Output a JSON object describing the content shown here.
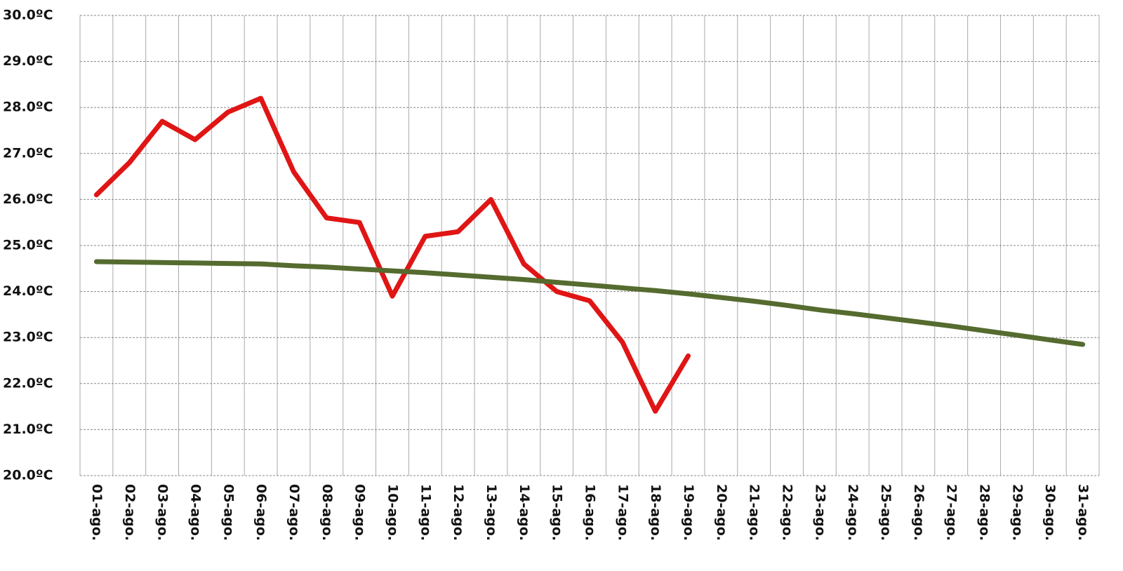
{
  "chart_data": {
    "type": "line",
    "categories": [
      "01-ago.",
      "02-ago.",
      "03-ago.",
      "04-ago.",
      "05-ago.",
      "06-ago.",
      "07-ago.",
      "08-ago.",
      "09-ago.",
      "10-ago.",
      "11-ago.",
      "12-ago.",
      "13-ago.",
      "14-ago.",
      "15-ago.",
      "16-ago.",
      "17-ago.",
      "18-ago.",
      "19-ago.",
      "20-ago.",
      "21-ago.",
      "22-ago.",
      "23-ago.",
      "24-ago.",
      "25-ago.",
      "26-ago.",
      "27-ago.",
      "28-ago.",
      "29-ago.",
      "30-ago.",
      "31-ago."
    ],
    "series": [
      {
        "color": "#e01515",
        "values": [
          26.1,
          26.8,
          27.7,
          27.3,
          27.9,
          28.2,
          26.6,
          25.6,
          25.5,
          23.9,
          25.2,
          25.3,
          26.0,
          24.6,
          24.0,
          23.8,
          22.9,
          21.4,
          22.6,
          null,
          null,
          null,
          null,
          null,
          null,
          null,
          null,
          null,
          null,
          null,
          null
        ]
      },
      {
        "color": "#556b2f",
        "values": [
          24.65,
          24.64,
          24.63,
          24.62,
          24.61,
          24.6,
          24.56,
          24.53,
          24.49,
          24.45,
          24.41,
          24.36,
          24.31,
          24.26,
          24.2,
          24.14,
          24.08,
          24.02,
          23.95,
          23.87,
          23.79,
          23.7,
          23.6,
          23.52,
          23.43,
          23.34,
          23.25,
          23.15,
          23.05,
          22.95,
          22.85
        ]
      }
    ],
    "ylim": [
      20,
      30
    ],
    "yticks": [
      {
        "value": 20,
        "label": "20.0ºC"
      },
      {
        "value": 21,
        "label": "21.0ºC"
      },
      {
        "value": 22,
        "label": "22.0ºC"
      },
      {
        "value": 23,
        "label": "23.0ºC"
      },
      {
        "value": 24,
        "label": "24.0ºC"
      },
      {
        "value": 25,
        "label": "25.0ºC"
      },
      {
        "value": 26,
        "label": "26.0ºC"
      },
      {
        "value": 27,
        "label": "27.0ºC"
      },
      {
        "value": 28,
        "label": "28.0ºC"
      },
      {
        "value": 29,
        "label": "29.0ºC"
      },
      {
        "value": 30,
        "label": "30.0ºC"
      }
    ],
    "grid": true
  }
}
